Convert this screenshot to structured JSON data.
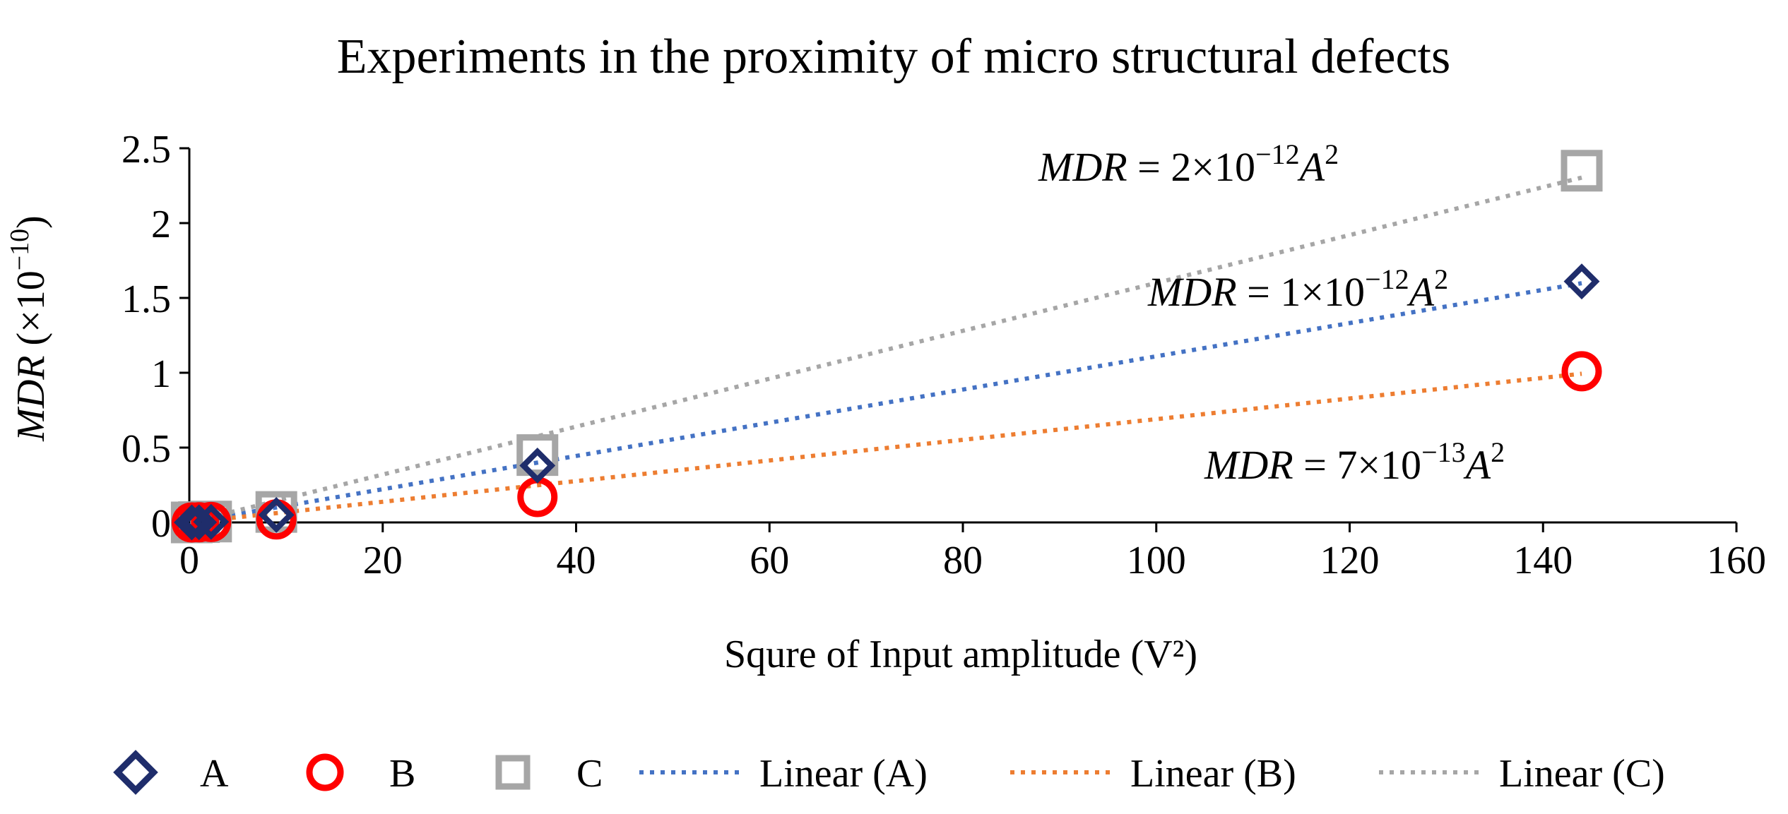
{
  "chart_data": {
    "type": "scatter",
    "title": "Experiments in the proximity of micro structural defects",
    "xlabel": "Squre of Input amplitude (V²)",
    "ylabel": {
      "var": "MDR",
      "unit_open": " (×10",
      "unit_exp": "−10",
      "unit_close": ")"
    },
    "xlim": [
      0,
      160
    ],
    "ylim": [
      0,
      2.5
    ],
    "x_ticks": [
      0,
      20,
      40,
      60,
      80,
      100,
      120,
      140,
      160
    ],
    "y_ticks": [
      0,
      0.5,
      1,
      1.5,
      2,
      2.5
    ],
    "x_tick_labels": [
      "0",
      "20",
      "40",
      "60",
      "80",
      "100",
      "120",
      "140",
      "160"
    ],
    "y_tick_labels": [
      "0",
      "0.5",
      "1",
      "1.5",
      "2",
      "2.5"
    ],
    "grid": false,
    "legend_position": "bottom",
    "series": [
      {
        "name": "A",
        "marker": "diamond",
        "color": "#1F2D6B",
        "x": [
          0.25,
          1,
          2.25,
          9,
          36,
          144
        ],
        "y": [
          0.0,
          0.001,
          0.004,
          0.05,
          0.38,
          1.61
        ]
      },
      {
        "name": "B",
        "marker": "circle",
        "color": "#FF0000",
        "x": [
          0.25,
          1,
          2.25,
          9,
          36,
          144
        ],
        "y": [
          0.0,
          0.001,
          0.003,
          0.02,
          0.17,
          1.01
        ]
      },
      {
        "name": "C",
        "marker": "square",
        "color": "#A6A6A6",
        "x": [
          0.25,
          1,
          2.25,
          9,
          36,
          144
        ],
        "y": [
          0.0,
          0.002,
          0.006,
          0.07,
          0.45,
          2.35
        ]
      }
    ],
    "trendlines": [
      {
        "name": "Linear (A)",
        "color": "#4472C4",
        "slope": 0.0111
      },
      {
        "name": "Linear (B)",
        "color": "#ED7D31",
        "slope": 0.0069
      },
      {
        "name": "Linear (C)",
        "color": "#A6A6A6",
        "slope": 0.016
      }
    ],
    "annotations": [
      {
        "var": "MDR",
        "eq": " = 2×10",
        "exp": "−12",
        "base": "A",
        "pow": "2"
      },
      {
        "var": "MDR",
        "eq": " = 1×10",
        "exp": "−12",
        "base": "A",
        "pow": "2"
      },
      {
        "var": "MDR",
        "eq": " = 7×10",
        "exp": "−13",
        "base": "A",
        "pow": "2"
      }
    ]
  }
}
